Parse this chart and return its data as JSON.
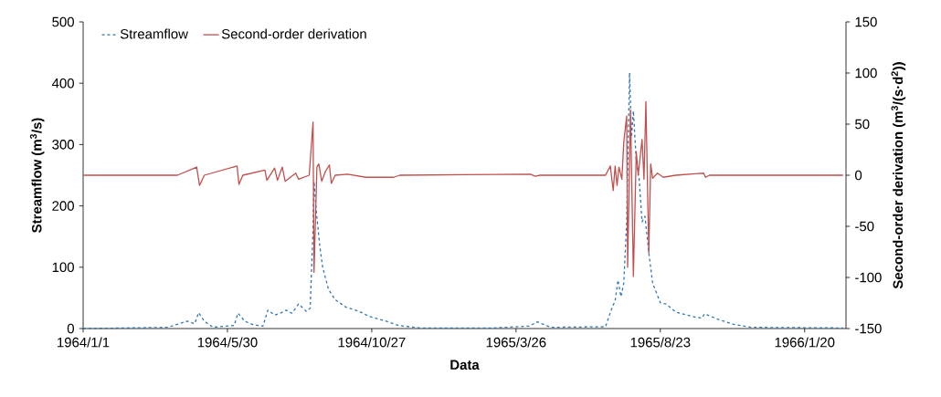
{
  "chart_data": {
    "type": "line",
    "xlabel": "Data",
    "ylabel": "Streamflow (m$^{3}$/s)",
    "y2label": "Second-order derivation (m$^{3}$/(s·d$^{2}$))",
    "xlim": [
      "1964-01-01",
      "1966-03-04"
    ],
    "xticks": [
      {
        "value": "1964-01-01",
        "label": "1964/1/1"
      },
      {
        "value": "1964-05-30",
        "label": "1964/5/30"
      },
      {
        "value": "1964-10-27",
        "label": "1964/10/27"
      },
      {
        "value": "1965-03-26",
        "label": "1965/3/26"
      },
      {
        "value": "1965-08-23",
        "label": "1965/8/23"
      },
      {
        "value": "1966-01-20",
        "label": "1966/1/20"
      }
    ],
    "ylim": [
      0,
      500
    ],
    "yticks": [
      0,
      100,
      200,
      300,
      400,
      500
    ],
    "y2lim": [
      -150,
      150
    ],
    "y2ticks": [
      -150,
      -100,
      -50,
      0,
      50,
      100,
      150
    ],
    "legend": "top left",
    "grid": false,
    "marker": "none",
    "series": [
      {
        "name": "Streamflow",
        "color": "#2e75b6",
        "line_style": "dashed",
        "x": [
          "1964-01-01",
          "1964-03-29",
          "1964-04-18",
          "1964-04-26",
          "1964-04-30",
          "1964-05-06",
          "1964-05-15",
          "1964-06-06",
          "1964-06-10",
          "1964-06-17",
          "1964-06-26",
          "1964-07-06",
          "1964-07-11",
          "1964-07-18",
          "1964-07-24",
          "1964-07-30",
          "1964-08-05",
          "1964-08-12",
          "1964-08-20",
          "1964-08-24",
          "1964-08-27",
          "1964-08-28",
          "1964-08-30",
          "1964-09-03",
          "1964-09-06",
          "1964-09-12",
          "1964-09-19",
          "1964-09-30",
          "1964-10-14",
          "1964-10-24",
          "1964-11-11",
          "1964-11-24",
          "1964-12-16",
          "1965-03-02",
          "1965-04-09",
          "1965-04-17",
          "1965-05-01",
          "1965-06-27",
          "1965-07-04",
          "1965-07-07",
          "1965-07-10",
          "1965-07-13",
          "1965-07-16",
          "1965-07-19",
          "1965-07-22",
          "1965-07-24",
          "1965-07-26",
          "1965-07-29",
          "1965-08-01",
          "1965-08-04",
          "1965-08-07",
          "1965-08-11",
          "1965-08-15",
          "1965-08-23",
          "1965-08-29",
          "1965-09-08",
          "1965-09-27",
          "1965-10-05",
          "1965-10-08",
          "1965-10-22",
          "1965-11-07",
          "1965-11-26",
          "1966-03-01"
        ],
        "values": [
          0,
          2,
          12,
          8,
          26,
          12,
          2,
          5,
          25,
          12,
          6,
          4,
          30,
          22,
          25,
          30,
          25,
          40,
          28,
          33,
          164,
          240,
          198,
          134,
          100,
          64,
          47,
          35,
          28,
          20,
          12,
          5,
          1,
          1,
          4,
          11,
          2,
          3,
          35,
          45,
          79,
          52,
          74,
          174,
          417,
          312,
          355,
          273,
          243,
          174,
          183,
          124,
          74,
          42,
          40,
          27,
          19,
          17,
          24,
          15,
          7,
          2,
          1
        ]
      },
      {
        "name": "Second-order derivation",
        "color": "#c0504d",
        "line_style": "solid",
        "axis": "y2",
        "x": [
          "1964-01-01",
          "1964-04-08",
          "1964-04-28",
          "1964-05-01",
          "1964-05-06",
          "1964-06-09",
          "1964-06-11",
          "1964-06-15",
          "1964-07-08",
          "1964-07-10",
          "1964-07-18",
          "1964-07-21",
          "1964-07-26",
          "1964-07-29",
          "1964-08-09",
          "1964-08-12",
          "1964-08-23",
          "1964-08-27",
          "1964-08-28",
          "1964-08-31",
          "1964-09-02",
          "1964-09-05",
          "1964-09-09",
          "1964-09-13",
          "1964-09-15",
          "1964-09-19",
          "1964-10-02",
          "1964-10-21",
          "1964-11-19",
          "1964-11-25",
          "1965-04-10",
          "1965-04-15",
          "1965-04-20",
          "1965-06-27",
          "1965-07-02",
          "1965-07-05",
          "1965-07-07",
          "1965-07-09",
          "1965-07-11",
          "1965-07-14",
          "1965-07-16",
          "1965-07-19",
          "1965-07-20",
          "1965-07-23",
          "1965-07-26",
          "1965-07-29",
          "1965-07-31",
          "1965-08-04",
          "1965-08-06",
          "1965-08-08",
          "1965-08-11",
          "1965-08-13",
          "1965-08-15",
          "1965-08-20",
          "1965-08-26",
          "1965-09-08",
          "1965-10-07",
          "1965-10-09",
          "1965-10-13",
          "1966-03-01"
        ],
        "values": [
          0,
          0,
          8,
          -10,
          0,
          9,
          -9,
          0,
          5,
          -5,
          7,
          -5,
          8,
          -6,
          2,
          -4,
          0,
          52,
          -95,
          8,
          11,
          -6,
          4,
          10,
          -8,
          0,
          1,
          -2,
          -2,
          0,
          1,
          -1,
          0,
          0,
          9,
          -15,
          9,
          -10,
          8,
          -4,
          32,
          58,
          -90,
          64,
          -99,
          23,
          0,
          35,
          -4,
          72,
          -76,
          11,
          -3,
          2,
          -2,
          0,
          2,
          -2,
          0,
          0
        ]
      }
    ]
  }
}
